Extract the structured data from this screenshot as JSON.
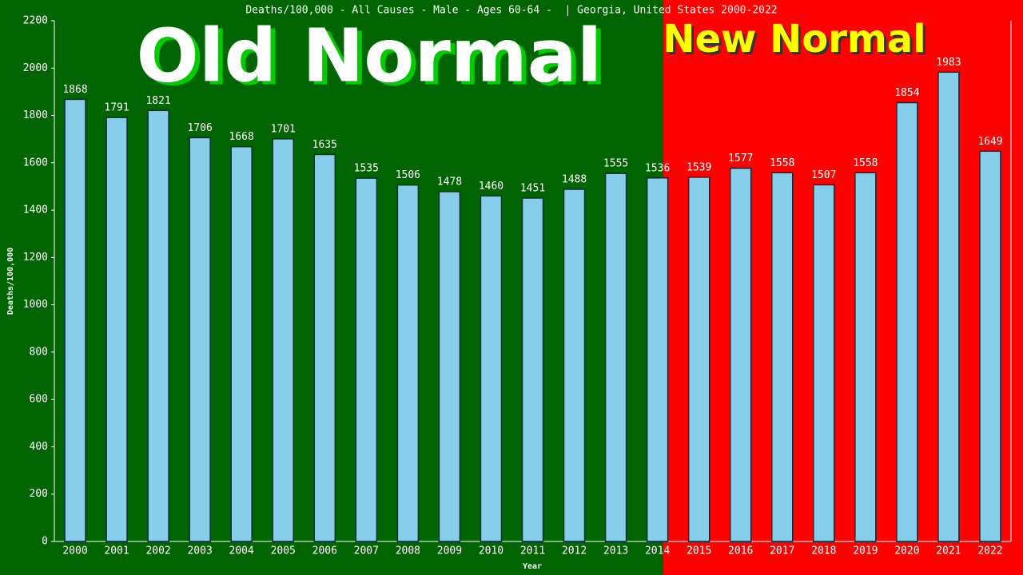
{
  "chart_data": {
    "type": "bar",
    "title": "Deaths/100,000 - All Causes - Male - Ages 60-64 -  | Georgia, United States 2000-2022",
    "annotations": [
      "Old Normal",
      "New Normal"
    ],
    "x_label": "Year",
    "y_label": "Deaths/100,000",
    "categories": [
      "2000",
      "2001",
      "2002",
      "2003",
      "2004",
      "2005",
      "2006",
      "2007",
      "2008",
      "2009",
      "2010",
      "2011",
      "2012",
      "2013",
      "2014",
      "2015",
      "2016",
      "2017",
      "2018",
      "2019",
      "2020",
      "2021",
      "2022"
    ],
    "values": [
      1868,
      1791,
      1821,
      1706,
      1668,
      1701,
      1635,
      1535,
      1506,
      1478,
      1460,
      1451,
      1488,
      1555,
      1536,
      1539,
      1577,
      1558,
      1507,
      1558,
      1854,
      1983,
      1649
    ],
    "color": "#87ceeb",
    "ylim": [
      0,
      2200
    ],
    "yticks": [
      0,
      200,
      400,
      600,
      800,
      1000,
      1200,
      1400,
      1600,
      1800,
      2000,
      2200
    ]
  }
}
